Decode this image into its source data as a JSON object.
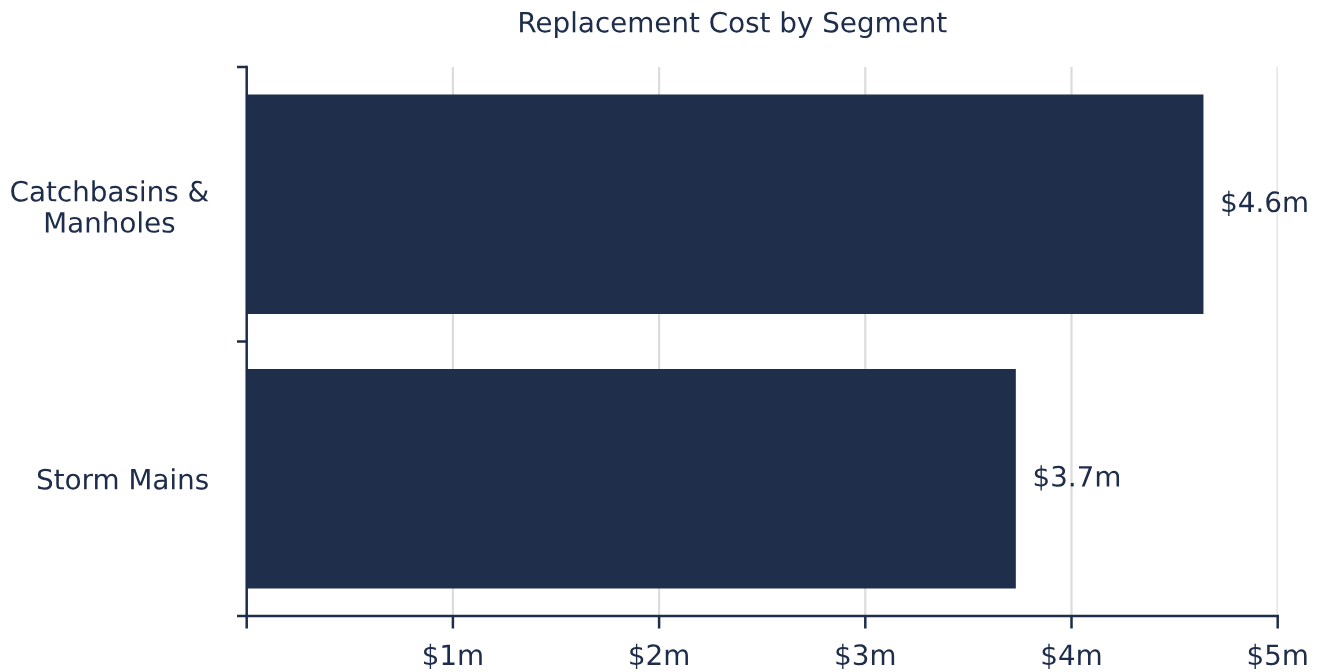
{
  "chart_data": {
    "type": "bar",
    "orientation": "horizontal",
    "title": "Replacement Cost by Segment",
    "categories": [
      "Catchbasins &\nManholes",
      "Storm Mains"
    ],
    "values": [
      4.64,
      3.73
    ],
    "color": "#1e2e4b",
    "value_labels": [
      "$4.6m",
      "$3.7m"
    ],
    "xlim": [
      0,
      5
    ],
    "xticks": [
      {
        "value": 0,
        "label": null
      },
      {
        "value": 1,
        "label": "$1m"
      },
      {
        "value": 2,
        "label": "$2m"
      },
      {
        "value": 3,
        "label": "$3m"
      },
      {
        "value": 4,
        "label": "$4m"
      },
      {
        "value": 5,
        "label": "$5m"
      }
    ],
    "grid": "x"
  }
}
